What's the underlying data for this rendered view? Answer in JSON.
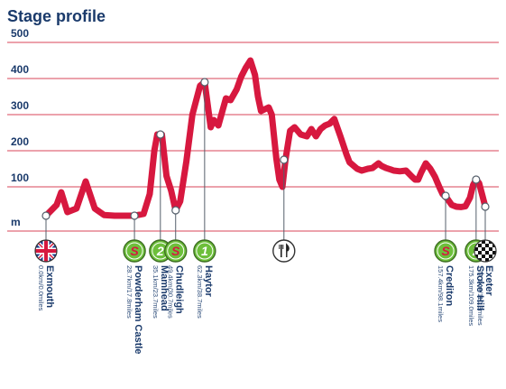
{
  "title": "Stage profile",
  "colors": {
    "profile": "#d7183f",
    "grid": "#d9455a",
    "text": "#1a3a6b",
    "sprint": "#6dbf3b",
    "climb": "#6dbf3b",
    "feed": "#ffffff"
  },
  "chart_data": {
    "type": "area",
    "ylabel": "m",
    "ylim": [
      0,
      500
    ],
    "yticks": [
      100,
      200,
      300,
      400,
      500
    ],
    "grid": true,
    "series": [
      {
        "values": [
          [
            0,
            20
          ],
          [
            7,
            50
          ],
          [
            10,
            85
          ],
          [
            14,
            30
          ],
          [
            20,
            40
          ],
          [
            26,
            115
          ],
          [
            32,
            40
          ],
          [
            38,
            22
          ],
          [
            45,
            20
          ],
          [
            52,
            20
          ],
          [
            58,
            20
          ],
          [
            64,
            25
          ],
          [
            68,
            80
          ],
          [
            71,
            200
          ],
          [
            73,
            245
          ],
          [
            76,
            245
          ],
          [
            79,
            130
          ],
          [
            82,
            90
          ],
          [
            85,
            35
          ],
          [
            88,
            60
          ],
          [
            92,
            170
          ],
          [
            96,
            300
          ],
          [
            101,
            380
          ],
          [
            104,
            390
          ],
          [
            108,
            265
          ],
          [
            110,
            285
          ],
          [
            113,
            270
          ],
          [
            118,
            345
          ],
          [
            121,
            340
          ],
          [
            125,
            370
          ],
          [
            128,
            405
          ],
          [
            131,
            430
          ],
          [
            134,
            450
          ],
          [
            137,
            410
          ],
          [
            139,
            350
          ],
          [
            141,
            310
          ],
          [
            146,
            320
          ],
          [
            148,
            300
          ],
          [
            151,
            180
          ],
          [
            153,
            120
          ],
          [
            155,
            100
          ],
          [
            157,
            175
          ],
          [
            160,
            255
          ],
          [
            163,
            265
          ],
          [
            167,
            245
          ],
          [
            171,
            240
          ],
          [
            174,
            260
          ],
          [
            177,
            240
          ],
          [
            180,
            260
          ],
          [
            183,
            270
          ],
          [
            186,
            275
          ],
          [
            189,
            288
          ],
          [
            193,
            240
          ],
          [
            197,
            190
          ],
          [
            199,
            168
          ],
          [
            204,
            150
          ],
          [
            207,
            145
          ],
          [
            211,
            150
          ],
          [
            214,
            152
          ],
          [
            218,
            165
          ],
          [
            220,
            158
          ],
          [
            223,
            152
          ],
          [
            226,
            148
          ],
          [
            228,
            145
          ],
          [
            232,
            143
          ],
          [
            236,
            145
          ],
          [
            240,
            128
          ],
          [
            242,
            120
          ],
          [
            244,
            120
          ],
          [
            246,
            140
          ],
          [
            249,
            165
          ],
          [
            252,
            150
          ],
          [
            255,
            128
          ],
          [
            258,
            98
          ],
          [
            260,
            80
          ],
          [
            263,
            68
          ],
          [
            266,
            50
          ],
          [
            269,
            45
          ],
          [
            272,
            44
          ],
          [
            275,
            46
          ],
          [
            278,
            70
          ],
          [
            280,
            105
          ],
          [
            282,
            120
          ],
          [
            284,
            110
          ],
          [
            286,
            78
          ],
          [
            288,
            45
          ]
        ]
      }
    ],
    "waypoints": [
      {
        "name": "Exmouth",
        "distance": "0.0km/0.0miles",
        "km": 0,
        "alt": 20,
        "icon": "union-flag-icon",
        "badge": ""
      },
      {
        "name": "Powderham Castle",
        "distance": "28.7km/17.8miles",
        "km": 58,
        "alt": 20,
        "icon": "sprint-icon",
        "badge": "S"
      },
      {
        "name": "Mamhead",
        "distance": "35.1km/23.7miles",
        "km": 75,
        "alt": 245,
        "icon": "climb-cat2-icon",
        "badge": "2"
      },
      {
        "name": "Chudleigh",
        "distance": "49.4km/30.7miles",
        "km": 85,
        "alt": 35,
        "icon": "sprint-icon",
        "badge": "S"
      },
      {
        "name": "Haytor",
        "distance": "62.3km/38.7miles",
        "km": 104,
        "alt": 390,
        "icon": "climb-cat1-icon",
        "badge": "1"
      },
      {
        "name": "",
        "distance": "",
        "km": 156,
        "alt": 175,
        "icon": "feed-zone-icon",
        "badge": ""
      },
      {
        "name": "Crediton",
        "distance": "157.4km/98.1miles",
        "km": 262,
        "alt": 75,
        "icon": "sprint-icon",
        "badge": "S"
      },
      {
        "name": "Stoke Hill",
        "distance": "175.3km/109.0miles",
        "km": 282,
        "alt": 120,
        "icon": "climb-cat2-icon",
        "badge": "2"
      },
      {
        "name": "Exeter",
        "distance": "177.3km/110.3miles",
        "km": 288,
        "alt": 45,
        "icon": "finish-flag-icon",
        "badge": ""
      }
    ]
  }
}
